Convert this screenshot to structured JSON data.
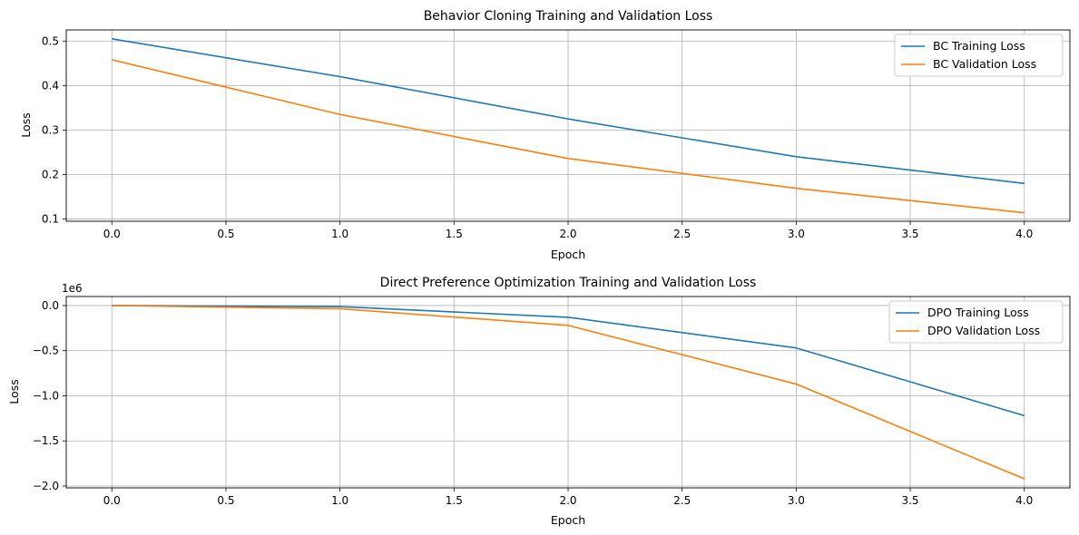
{
  "chart_data": [
    {
      "type": "line",
      "title": "Behavior Cloning Training and Validation Loss",
      "xlabel": "Epoch",
      "ylabel": "Loss",
      "x": [
        0,
        1,
        2,
        3,
        4
      ],
      "xlim": [
        -0.2,
        4.2
      ],
      "ylim": [
        0.095,
        0.525
      ],
      "xticks": [
        0,
        0.5,
        1,
        1.5,
        2,
        2.5,
        3,
        3.5,
        4
      ],
      "xtick_labels": [
        "0.0",
        "0.5",
        "1.0",
        "1.5",
        "2.0",
        "2.5",
        "3.0",
        "3.5",
        "4.0"
      ],
      "yticks": [
        0.1,
        0.2,
        0.3,
        0.4,
        0.5
      ],
      "ytick_labels": [
        "0.1",
        "0.2",
        "0.3",
        "0.4",
        "0.5"
      ],
      "offset_text": "",
      "grid": true,
      "legend_position": "top-right",
      "series": [
        {
          "name": "BC Training Loss",
          "color": "#1f77b4",
          "values": [
            0.505,
            0.42,
            0.325,
            0.24,
            0.18
          ]
        },
        {
          "name": "BC Validation Loss",
          "color": "#ff7f0e",
          "values": [
            0.458,
            0.335,
            0.236,
            0.169,
            0.114
          ]
        }
      ]
    },
    {
      "type": "line",
      "title": "Direct Preference Optimization Training and Validation Loss",
      "xlabel": "Epoch",
      "ylabel": "Loss",
      "x": [
        0,
        1,
        2,
        3,
        4
      ],
      "xlim": [
        -0.2,
        4.2
      ],
      "ylim": [
        -2.02,
        0.1
      ],
      "xticks": [
        0,
        0.5,
        1,
        1.5,
        2,
        2.5,
        3,
        3.5,
        4
      ],
      "xtick_labels": [
        "0.0",
        "0.5",
        "1.0",
        "1.5",
        "2.0",
        "2.5",
        "3.0",
        "3.5",
        "4.0"
      ],
      "yticks": [
        0,
        -0.5,
        -1,
        -1.5,
        -2
      ],
      "ytick_labels": [
        "0.0",
        "−0.5",
        "−1.0",
        "−1.5",
        "−2.0"
      ],
      "offset_text": "1e6",
      "grid": true,
      "legend_position": "top-right",
      "series": [
        {
          "name": "DPO Training Loss",
          "color": "#1f77b4",
          "values": [
            0,
            -0.012,
            -0.13,
            -0.47,
            -1.22
          ]
        },
        {
          "name": "DPO Validation Loss",
          "color": "#ff7f0e",
          "values": [
            0,
            -0.035,
            -0.22,
            -0.87,
            -1.92
          ]
        }
      ]
    }
  ]
}
